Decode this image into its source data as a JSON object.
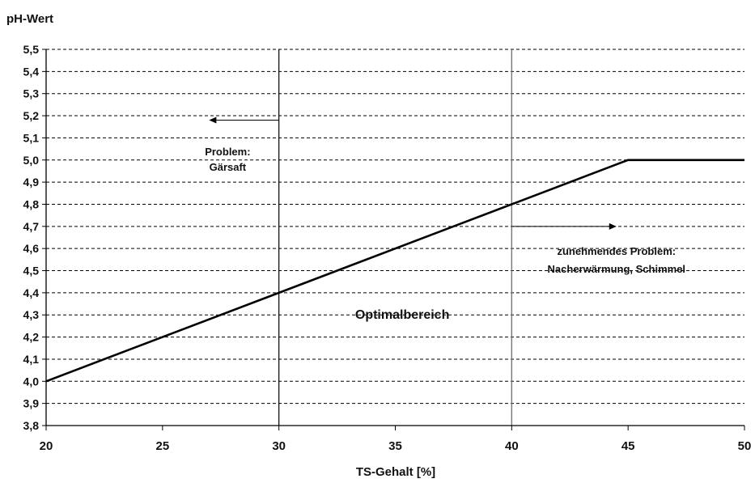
{
  "chart_data": {
    "type": "line",
    "ylabel": "pH-Wert",
    "xlabel": "TS-Gehalt [%]",
    "xlim": [
      20,
      50
    ],
    "ylim": [
      3.8,
      5.5
    ],
    "x_ticks": [
      20,
      25,
      30,
      35,
      40,
      45,
      50
    ],
    "x_tick_labels": [
      "20",
      "25",
      "30",
      "35",
      "40",
      "45",
      "50"
    ],
    "y_ticks": [
      3.8,
      3.9,
      4.0,
      4.1,
      4.2,
      4.3,
      4.4,
      4.5,
      4.6,
      4.7,
      4.8,
      4.9,
      5.0,
      5.1,
      5.2,
      5.3,
      5.4,
      5.5
    ],
    "y_tick_labels": [
      "3,8",
      "3,9",
      "4,0",
      "4,1",
      "4,2",
      "4,3",
      "4,4",
      "4,5",
      "4,6",
      "4,7",
      "4,8",
      "4,9",
      "5,0",
      "5,1",
      "5,2",
      "5,3",
      "5,4",
      "5,5"
    ],
    "grid": "horizontal-dashed",
    "series": [
      {
        "x": [
          20,
          45,
          50
        ],
        "y": [
          4.0,
          5.0,
          5.0
        ]
      }
    ],
    "vertical_lines": [
      30,
      40
    ],
    "arrows": [
      {
        "from": [
          30,
          5.18
        ],
        "to": [
          27,
          5.18
        ]
      },
      {
        "from": [
          40,
          4.7
        ],
        "to": [
          44.5,
          4.7
        ]
      }
    ],
    "annotations": [
      {
        "id": "gaersaft",
        "lines": [
          "Problem:",
          "Gärsaft"
        ],
        "x": 27.8,
        "y": [
          5.04,
          4.97
        ],
        "bold": false
      },
      {
        "id": "optimal",
        "lines": [
          "Optimalbereich"
        ],
        "x": 35.3,
        "y": [
          4.3
        ],
        "bold": true
      },
      {
        "id": "zunehmend",
        "lines": [
          "zunehmendes Problem:",
          "Nacherwärmung, Schimmel"
        ],
        "x": 44.5,
        "y": [
          4.59,
          4.51
        ],
        "bold": false
      }
    ]
  }
}
